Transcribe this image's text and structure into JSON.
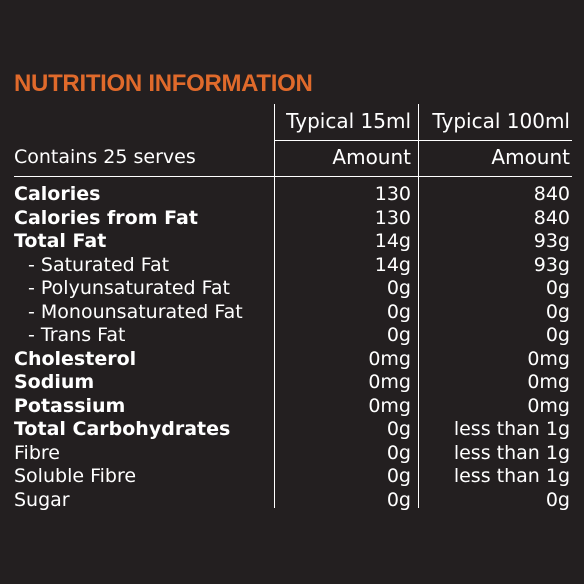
{
  "title": "NUTRITION INFORMATION",
  "header": {
    "col1": "Typical 15ml",
    "col2": "Typical 100ml",
    "serves": "Contains 25 serves",
    "amount1": "Amount",
    "amount2": "Amount"
  },
  "rows": [
    {
      "label": "Calories",
      "v1": "130",
      "v2": "840"
    },
    {
      "label": "Calories from Fat",
      "v1": "130",
      "v2": "840"
    },
    {
      "label": "Total Fat",
      "v1": "14g",
      "v2": "93g"
    },
    {
      "label": "- Saturated Fat",
      "v1": "14g",
      "v2": "93g"
    },
    {
      "label": "- Polyunsaturated Fat",
      "v1": "0g",
      "v2": "0g"
    },
    {
      "label": "- Monounsaturated Fat",
      "v1": "0g",
      "v2": "0g"
    },
    {
      "label": "- Trans Fat",
      "v1": "0g",
      "v2": "0g"
    },
    {
      "label": "Cholesterol",
      "v1": "0mg",
      "v2": "0mg"
    },
    {
      "label": "Sodium",
      "v1": "0mg",
      "v2": "0mg"
    },
    {
      "label": "Potassium",
      "v1": "0mg",
      "v2": "0mg"
    },
    {
      "label": "Total Carbohydrates",
      "v1": "0g",
      "v2": "less than 1g"
    },
    {
      "label": "Fibre",
      "v1": "0g",
      "v2": "less than 1g"
    },
    {
      "label": "Soluble Fibre",
      "v1": "0g",
      "v2": "less than 1g"
    },
    {
      "label": "Sugar",
      "v1": "0g",
      "v2": "0g"
    }
  ],
  "colors": {
    "background": "#231f20",
    "title": "#e06a2b",
    "text": "#ffffff"
  }
}
